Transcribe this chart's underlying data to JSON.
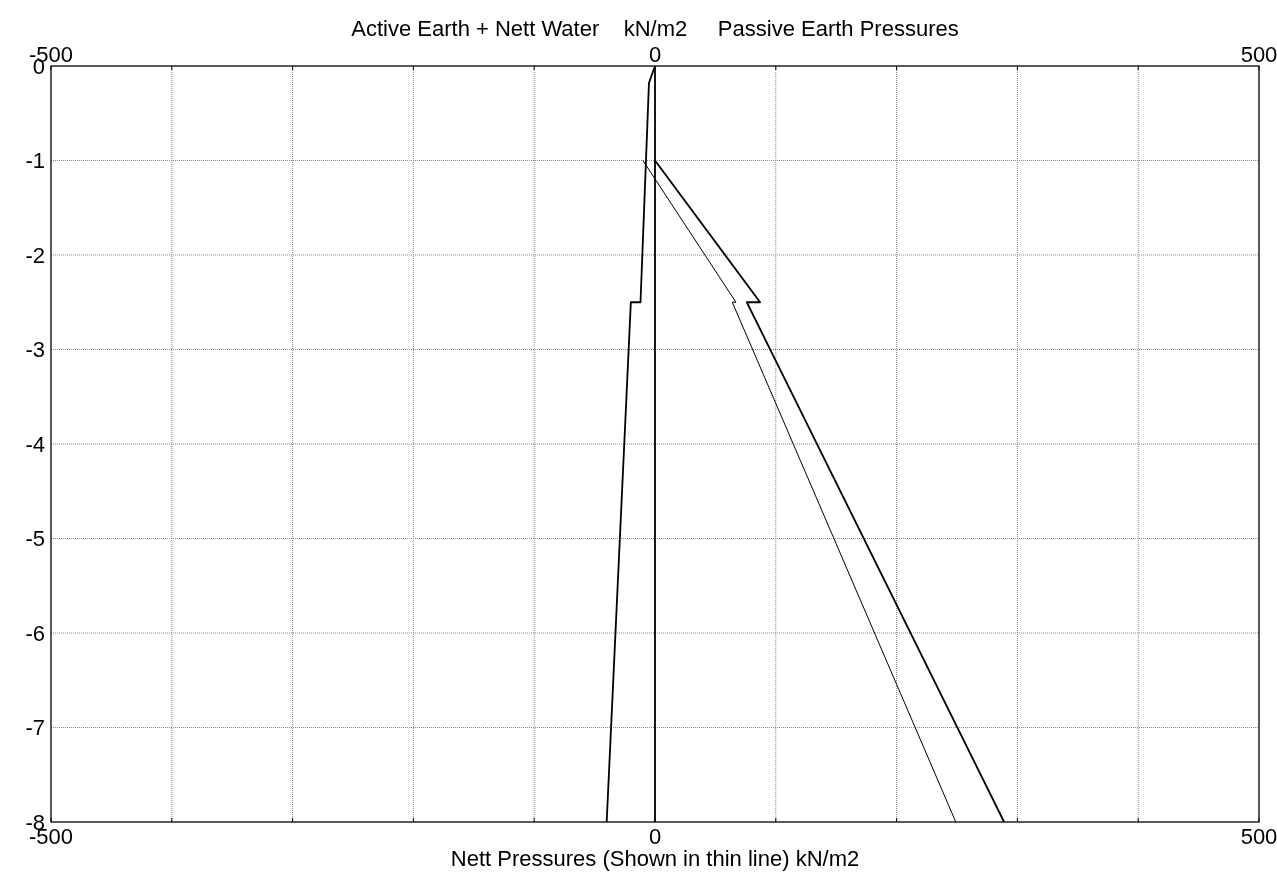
{
  "chart_data": {
    "type": "line",
    "x2label": "Active Earth + Nett Water    kN/m2     Passive Earth Pressures",
    "xlabel": "Nett Pressures (Shown in thin line) kN/m2",
    "xlim": [
      -500,
      500
    ],
    "x2lim": [
      -500,
      500
    ],
    "ylim": [
      -8,
      0
    ],
    "xticks": [
      -500,
      {
        "value": -400,
        "label": null
      },
      {
        "value": -300,
        "label": null
      },
      {
        "value": -200,
        "label": null
      },
      {
        "value": -100,
        "label": null
      },
      0,
      {
        "value": 100,
        "label": null
      },
      {
        "value": 200,
        "label": null
      },
      {
        "value": 300,
        "label": null
      },
      {
        "value": 400,
        "label": null
      },
      500
    ],
    "x2ticks": [
      -500,
      {
        "value": -400,
        "label": null
      },
      {
        "value": -300,
        "label": null
      },
      {
        "value": -200,
        "label": null
      },
      {
        "value": -100,
        "label": null
      },
      0,
      {
        "value": 100,
        "label": null
      },
      {
        "value": 200,
        "label": null
      },
      {
        "value": 300,
        "label": null
      },
      {
        "value": 400,
        "label": null
      },
      500
    ],
    "yticks": [
      0,
      -1,
      -2,
      -3,
      -4,
      -5,
      -6,
      -7,
      -8
    ],
    "grid": true,
    "marker": "none",
    "line_style": "solid",
    "series": [
      {
        "color": "#000000",
        "x": [
          0,
          0
        ],
        "values": [
          0,
          -8
        ]
      },
      {
        "color": "#000000",
        "x": [
          0,
          -5,
          -12,
          -20,
          -40
        ],
        "values": [
          0,
          -0.18,
          -2.5,
          -2.5,
          -8
        ]
      },
      {
        "color": "#000000",
        "x": [
          0,
          87,
          76,
          289
        ],
        "values": [
          -1,
          -2.5,
          -2.5,
          -8
        ]
      },
      {
        "color": "#000000",
        "x": [
          -10,
          67,
          64,
          249
        ],
        "values": [
          -1,
          -2.5,
          -2.5,
          -8
        ]
      }
    ]
  }
}
